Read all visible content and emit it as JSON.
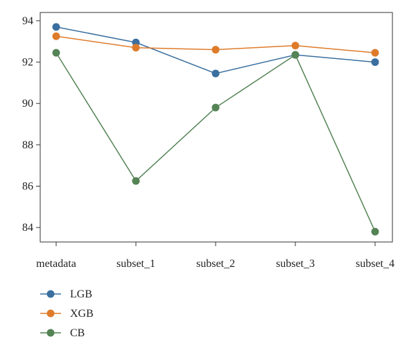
{
  "chart_data": {
    "type": "line",
    "title": "",
    "xlabel": "",
    "ylabel": "",
    "categories": [
      "metadata",
      "subset_1",
      "subset_2",
      "subset_3",
      "subset_4"
    ],
    "ylim": [
      83.3,
      94.4
    ],
    "yticks": [
      84,
      86,
      88,
      90,
      92,
      94
    ],
    "grid": false,
    "legend_position": "below",
    "series": [
      {
        "name": "LGB",
        "color": "#3a6f9f",
        "values": [
          93.7,
          92.95,
          91.45,
          92.35,
          92.0
        ]
      },
      {
        "name": "XGB",
        "color": "#de7b2a",
        "values": [
          93.25,
          92.7,
          92.6,
          92.8,
          92.45
        ]
      },
      {
        "name": "CB",
        "color": "#548355",
        "values": [
          92.45,
          86.25,
          89.8,
          92.35,
          83.8
        ]
      }
    ]
  }
}
